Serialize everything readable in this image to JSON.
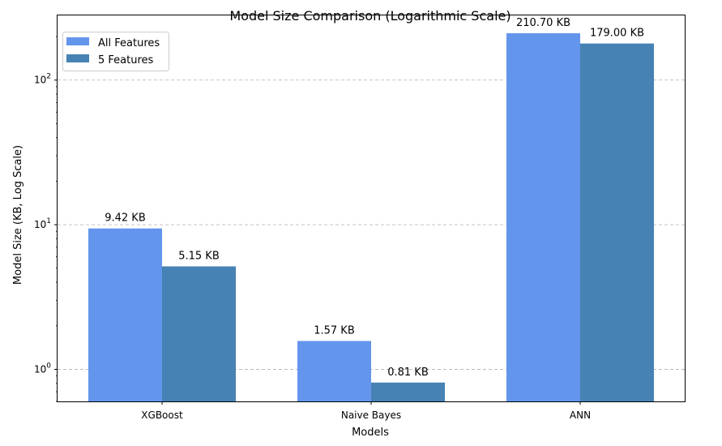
{
  "chart_data": {
    "type": "bar",
    "title": "Model Size Comparison (Logarithmic Scale)",
    "xlabel": "Models",
    "ylabel": "Model Size (KB, Log Scale)",
    "yscale": "log",
    "ylim": [
      0.6,
      280
    ],
    "yticks": [
      {
        "value": 1,
        "base": "10",
        "exp": "0"
      },
      {
        "value": 10,
        "base": "10",
        "exp": "1"
      },
      {
        "value": 100,
        "base": "10",
        "exp": "2"
      }
    ],
    "grid": "y-dashed",
    "legend_position": "top-left",
    "categories": [
      "XGBoost",
      "Naive Bayes",
      "ANN"
    ],
    "series": [
      {
        "name": "All Features",
        "color": "#6495ED",
        "values": [
          9.42,
          1.57,
          210.7
        ],
        "labels": [
          "9.42 KB",
          "1.57 KB",
          "210.70 KB"
        ]
      },
      {
        "name": "5 Features",
        "color": "#4682B4",
        "values": [
          5.15,
          0.81,
          179.0
        ],
        "labels": [
          "5.15 KB",
          "0.81 KB",
          "179.00 KB"
        ]
      }
    ]
  }
}
